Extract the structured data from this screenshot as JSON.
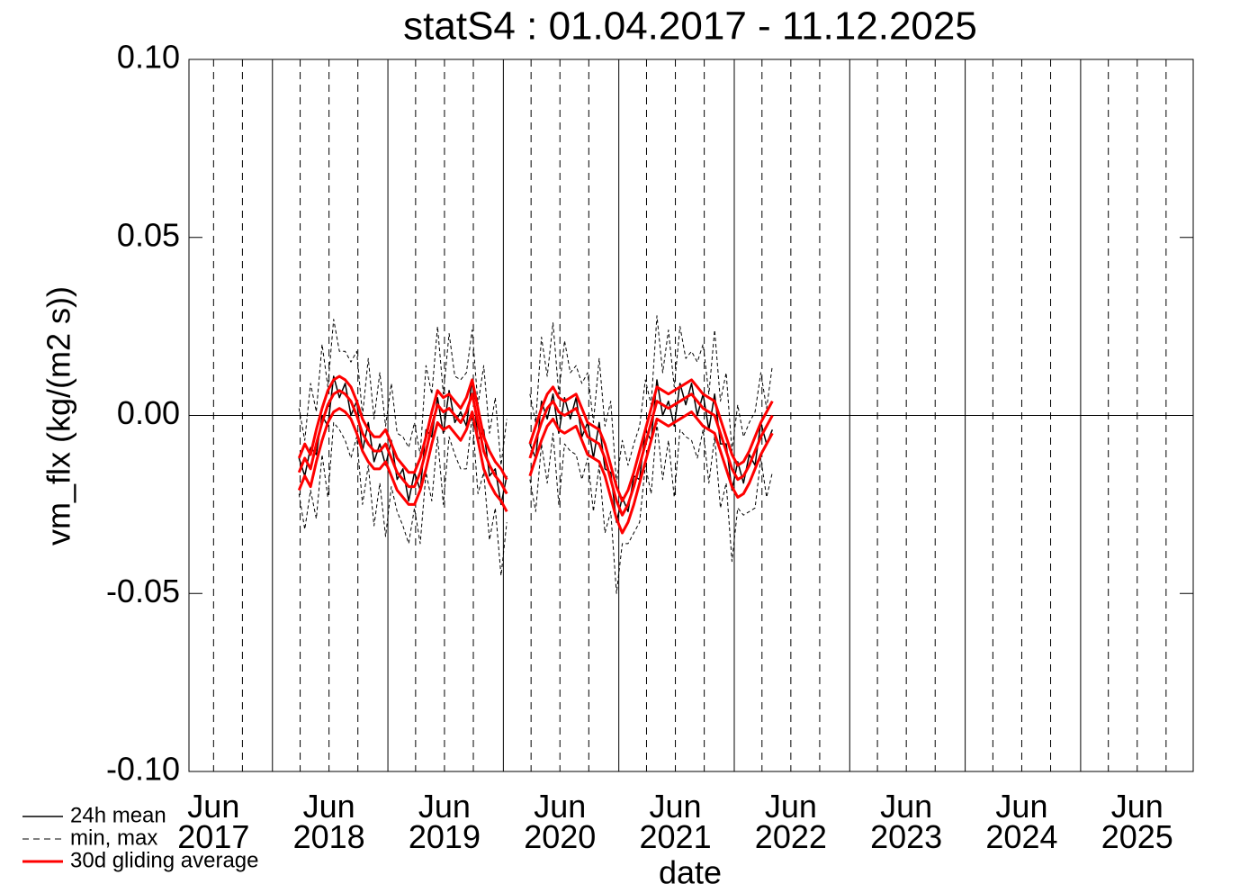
{
  "chart_data": {
    "type": "line",
    "title": "statS4 : 01.04.2017 - 11.12.2025",
    "x_label": "date",
    "y_label": "vm_flx (kg/(m2 s))",
    "xlim": [
      2017.247,
      2025.945
    ],
    "ylim": [
      -0.1,
      0.1
    ],
    "yticks": [
      {
        "value": -0.1,
        "label": "-0.10"
      },
      {
        "value": -0.05,
        "label": "-0.05"
      },
      {
        "value": 0,
        "label": "0.00"
      },
      {
        "value": 0.05,
        "label": "0.05"
      },
      {
        "value": 0.1,
        "label": "0.10"
      }
    ],
    "xticks": [
      {
        "value": 2017.46,
        "label": "Jun\n2017"
      },
      {
        "value": 2018.46,
        "label": "Jun\n2018"
      },
      {
        "value": 2019.46,
        "label": "Jun\n2019"
      },
      {
        "value": 2020.46,
        "label": "Jun\n2020"
      },
      {
        "value": 2021.46,
        "label": "Jun\n2021"
      },
      {
        "value": 2022.46,
        "label": "Jun\n2022"
      },
      {
        "value": 2023.46,
        "label": "Jun\n2023"
      },
      {
        "value": 2024.46,
        "label": "Jun\n2024"
      },
      {
        "value": 2025.46,
        "label": "Jun\n2025"
      }
    ],
    "xgrid_solid": [
      2017.97,
      2018.97,
      2019.97,
      2020.97,
      2021.97,
      2022.97,
      2023.97,
      2024.97
    ],
    "xgrid_dashed": [
      2017.71,
      2018.21,
      2018.71,
      2019.21,
      2019.71,
      2020.21,
      2020.71,
      2021.21,
      2021.71,
      2022.21,
      2022.71,
      2023.21,
      2023.71,
      2024.21,
      2024.71,
      2025.21,
      2025.71
    ],
    "grid": true,
    "zero_line": true,
    "legend": "lower left",
    "x": [
      2018.2,
      2018.25,
      2018.3,
      2018.35,
      2018.4,
      2018.45,
      2018.5,
      2018.55,
      2018.6,
      2018.65,
      2018.7,
      2018.75,
      2018.8,
      2018.85,
      2018.9,
      2018.95,
      2019.0,
      2019.05,
      2019.1,
      2019.15,
      2019.2,
      2019.25,
      2019.3,
      2019.35,
      2019.4,
      2019.45,
      2019.5,
      2019.55,
      2019.6,
      2019.65,
      2019.7,
      2019.75,
      2019.8,
      2019.85,
      2019.9,
      2019.95,
      2020.0,
      2020.1,
      2020.2,
      2020.25,
      2020.3,
      2020.35,
      2020.4,
      2020.45,
      2020.5,
      2020.55,
      2020.6,
      2020.65,
      2020.7,
      2020.75,
      2020.8,
      2020.85,
      2020.9,
      2020.95,
      2021.0,
      2021.05,
      2021.1,
      2021.15,
      2021.2,
      2021.25,
      2021.3,
      2021.35,
      2021.4,
      2021.45,
      2021.5,
      2021.55,
      2021.6,
      2021.65,
      2021.7,
      2021.75,
      2021.8,
      2021.85,
      2021.9,
      2021.95,
      2022.0,
      2022.05,
      2022.1,
      2022.15,
      2022.2,
      2022.25,
      2022.3
    ],
    "series": [
      {
        "name": "24h mean",
        "color": "#000000",
        "width": 1.5,
        "dash": false,
        "values": [
          -0.012,
          -0.017,
          -0.009,
          -0.011,
          0.0,
          -0.003,
          0.011,
          0.005,
          0.009,
          0.0,
          0.004,
          -0.01,
          -0.002,
          -0.013,
          -0.008,
          -0.014,
          -0.007,
          -0.018,
          -0.015,
          -0.024,
          -0.016,
          -0.021,
          -0.004,
          -0.006,
          0.005,
          -0.005,
          0.007,
          -0.002,
          0.001,
          -0.003,
          0.01,
          -0.007,
          -0.004,
          -0.017,
          -0.015,
          -0.025,
          -0.017,
          null,
          -0.008,
          -0.012,
          0.004,
          -0.001,
          0.006,
          -0.005,
          0.005,
          -0.001,
          0.005,
          -0.006,
          -0.002,
          -0.012,
          -0.002,
          -0.015,
          -0.016,
          -0.03,
          -0.023,
          -0.027,
          -0.017,
          -0.018,
          -0.004,
          -0.007,
          0.01,
          0.0,
          0.004,
          -0.003,
          0.009,
          0.003,
          0.009,
          0.0,
          0.006,
          -0.004,
          0.006,
          -0.008,
          -0.008,
          -0.021,
          -0.013,
          -0.019,
          -0.011,
          -0.014,
          -0.002,
          -0.008,
          -0.004
        ]
      },
      {
        "name": "min, max",
        "color": "#000000",
        "width": 1,
        "dash": true,
        "high": [
          0.002,
          -0.007,
          0.009,
          0.001,
          0.02,
          0.008,
          0.027,
          0.018,
          0.018,
          0.015,
          0.018,
          0.0,
          0.016,
          -0.001,
          0.012,
          -0.003,
          0.009,
          -0.005,
          -0.006,
          -0.009,
          -0.002,
          -0.011,
          0.014,
          0.006,
          0.025,
          0.006,
          0.023,
          0.011,
          0.01,
          0.012,
          0.024,
          0.003,
          0.014,
          -0.005,
          0.005,
          -0.014,
          -0.001,
          null,
          0.006,
          -0.002,
          0.022,
          0.011,
          0.026,
          0.006,
          0.021,
          0.012,
          0.014,
          0.009,
          0.012,
          -0.002,
          0.016,
          -0.003,
          0.004,
          -0.019,
          -0.007,
          -0.014,
          -0.008,
          -0.003,
          0.01,
          0.003,
          0.028,
          0.012,
          0.024,
          0.008,
          0.025,
          0.016,
          0.018,
          0.015,
          0.02,
          0.006,
          0.024,
          0.004,
          0.012,
          -0.01,
          0.003,
          -0.006,
          -0.002,
          0.001,
          0.012,
          0.002,
          0.014
        ],
        "low": [
          -0.022,
          -0.032,
          -0.021,
          -0.029,
          -0.011,
          -0.023,
          -0.002,
          -0.004,
          -0.007,
          -0.012,
          -0.006,
          -0.025,
          -0.014,
          -0.031,
          -0.019,
          -0.034,
          -0.02,
          -0.027,
          -0.031,
          -0.036,
          -0.026,
          -0.036,
          -0.016,
          -0.024,
          -0.006,
          -0.025,
          -0.006,
          -0.011,
          -0.015,
          -0.015,
          0.0,
          -0.022,
          -0.016,
          -0.035,
          -0.026,
          -0.045,
          -0.03,
          null,
          -0.018,
          -0.027,
          -0.008,
          -0.019,
          -0.005,
          -0.025,
          -0.008,
          -0.01,
          -0.011,
          -0.018,
          -0.012,
          -0.027,
          -0.014,
          -0.033,
          -0.027,
          -0.05,
          -0.036,
          -0.036,
          -0.033,
          -0.03,
          -0.014,
          -0.022,
          -0.002,
          -0.018,
          -0.007,
          -0.023,
          -0.004,
          -0.006,
          -0.007,
          -0.012,
          -0.004,
          -0.019,
          -0.006,
          -0.026,
          -0.019,
          -0.041,
          -0.026,
          -0.028,
          -0.027,
          -0.026,
          -0.012,
          -0.023,
          -0.016
        ]
      },
      {
        "name": "30d gliding average",
        "color": "#ff0000",
        "width": 3,
        "dash": false,
        "values": [
          -0.016,
          -0.012,
          -0.015,
          -0.008,
          -0.002,
          0.003,
          0.006,
          0.007,
          0.006,
          0.004,
          0.0,
          -0.005,
          -0.008,
          -0.01,
          -0.01,
          -0.008,
          -0.012,
          -0.016,
          -0.018,
          -0.02,
          -0.02,
          -0.016,
          -0.01,
          -0.003,
          0.003,
          0.001,
          0.002,
          0.0,
          -0.002,
          0.001,
          0.006,
          -0.002,
          -0.01,
          -0.014,
          -0.017,
          -0.019,
          -0.022,
          null,
          -0.012,
          -0.007,
          -0.002,
          0.002,
          0.004,
          0.001,
          0.0,
          0.001,
          0.002,
          -0.002,
          -0.006,
          -0.007,
          -0.008,
          -0.012,
          -0.018,
          -0.024,
          -0.028,
          -0.025,
          -0.02,
          -0.014,
          -0.008,
          -0.002,
          0.004,
          0.003,
          0.002,
          0.003,
          0.004,
          0.005,
          0.006,
          0.004,
          0.002,
          0.001,
          0.0,
          -0.005,
          -0.01,
          -0.015,
          -0.018,
          -0.017,
          -0.014,
          -0.01,
          -0.006,
          -0.003,
          0.0
        ],
        "high": [
          -0.012,
          -0.008,
          -0.011,
          -0.004,
          0.002,
          0.007,
          0.01,
          0.011,
          0.01,
          0.008,
          0.004,
          -0.001,
          -0.004,
          -0.006,
          -0.006,
          -0.004,
          -0.008,
          -0.012,
          -0.014,
          -0.016,
          -0.016,
          -0.012,
          -0.006,
          0.001,
          0.007,
          0.005,
          0.006,
          0.004,
          0.002,
          0.005,
          0.01,
          0.002,
          -0.006,
          -0.01,
          -0.013,
          -0.015,
          -0.018,
          null,
          -0.008,
          -0.003,
          0.002,
          0.006,
          0.008,
          0.005,
          0.004,
          0.005,
          0.006,
          0.002,
          -0.002,
          -0.003,
          -0.004,
          -0.008,
          -0.014,
          -0.02,
          -0.024,
          -0.021,
          -0.016,
          -0.01,
          -0.004,
          0.002,
          0.008,
          0.007,
          0.006,
          0.007,
          0.008,
          0.009,
          0.01,
          0.008,
          0.006,
          0.005,
          0.004,
          -0.001,
          -0.006,
          -0.011,
          -0.014,
          -0.013,
          -0.01,
          -0.006,
          -0.002,
          0.001,
          0.004
        ],
        "low": [
          -0.021,
          -0.017,
          -0.02,
          -0.013,
          -0.007,
          -0.002,
          0.001,
          0.002,
          0.001,
          -0.001,
          -0.005,
          -0.01,
          -0.013,
          -0.015,
          -0.015,
          -0.013,
          -0.017,
          -0.021,
          -0.023,
          -0.025,
          -0.025,
          -0.021,
          -0.015,
          -0.008,
          -0.002,
          -0.004,
          -0.003,
          -0.005,
          -0.007,
          -0.004,
          0.001,
          -0.007,
          -0.015,
          -0.019,
          -0.022,
          -0.024,
          -0.027,
          null,
          -0.017,
          -0.012,
          -0.007,
          -0.003,
          -0.001,
          -0.004,
          -0.005,
          -0.004,
          -0.003,
          -0.007,
          -0.011,
          -0.012,
          -0.013,
          -0.017,
          -0.023,
          -0.029,
          -0.033,
          -0.03,
          -0.025,
          -0.019,
          -0.013,
          -0.007,
          -0.001,
          -0.002,
          -0.003,
          -0.002,
          -0.001,
          0.0,
          0.001,
          -0.001,
          -0.003,
          -0.004,
          -0.005,
          -0.01,
          -0.015,
          -0.02,
          -0.023,
          -0.022,
          -0.019,
          -0.015,
          -0.011,
          -0.008,
          -0.005
        ]
      }
    ]
  }
}
